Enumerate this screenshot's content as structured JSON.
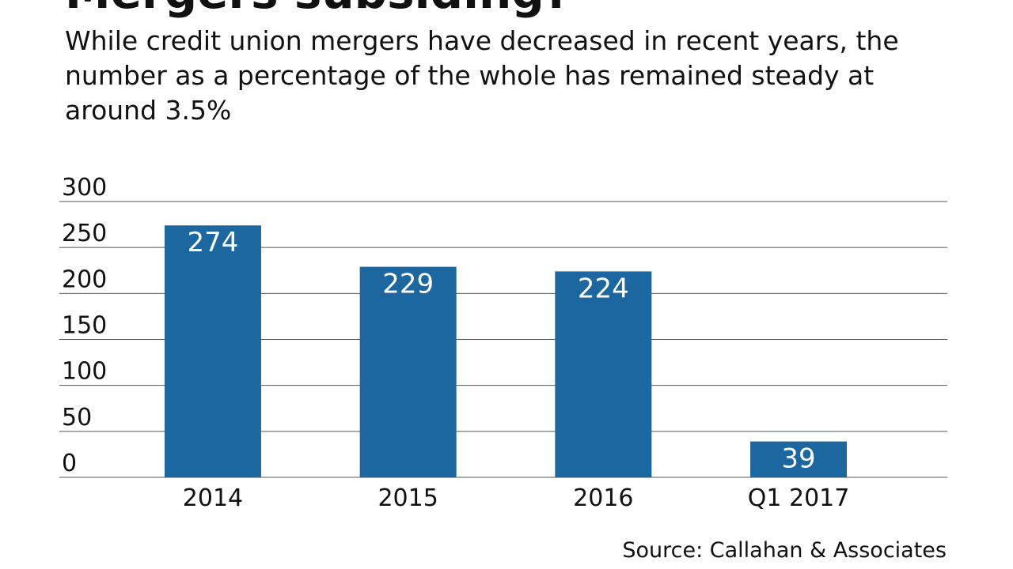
{
  "chart_data": {
    "type": "bar",
    "title": "Mergers subsiding?",
    "subtitle": "While credit union mergers have decreased in recent years, the number as a percentage of the whole has remained steady at around 3.5%",
    "categories": [
      "2014",
      "2015",
      "2016",
      "Q1 2017"
    ],
    "values": [
      274,
      229,
      224,
      39
    ],
    "color": "#1d67a0",
    "ylim": [
      0,
      300
    ],
    "yticks": [
      0,
      50,
      100,
      150,
      200,
      250,
      300
    ],
    "grid": true,
    "source": "Source: Callahan & Associates"
  }
}
